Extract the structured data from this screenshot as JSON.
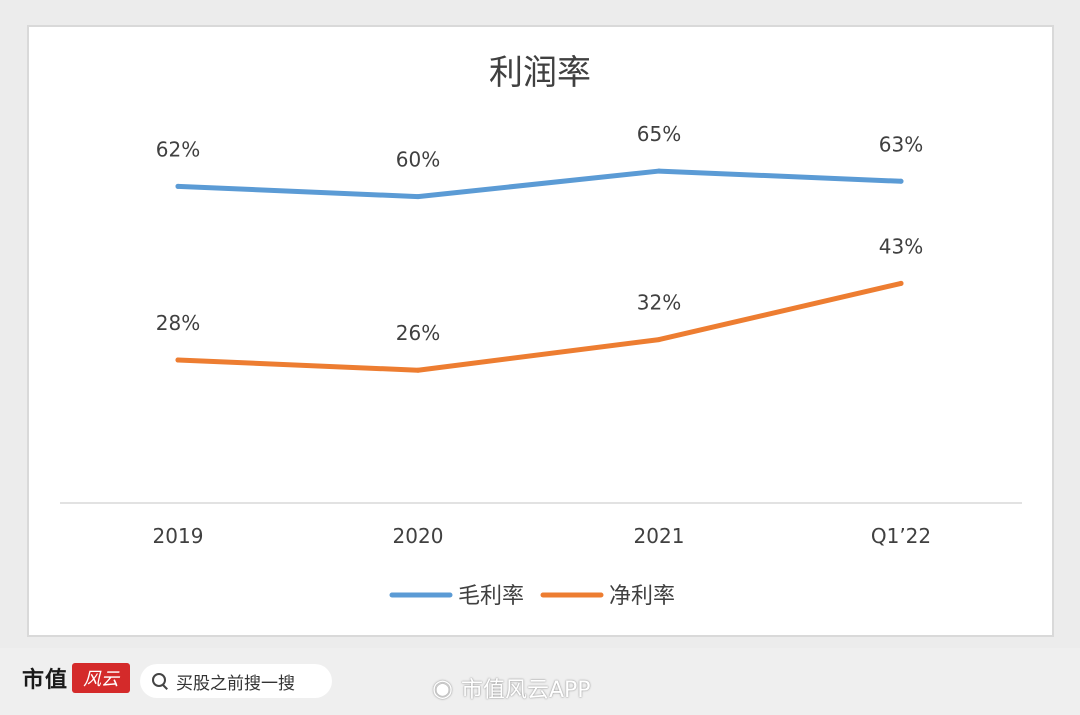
{
  "chart_data": {
    "type": "line",
    "title": "利润率",
    "categories": [
      "2019",
      "2020",
      "2021",
      "Q1’22"
    ],
    "series": [
      {
        "name": "毛利率",
        "values": [
          62,
          60,
          65,
          63
        ],
        "labels": [
          "62%",
          "60%",
          "65%",
          "63%"
        ],
        "color": "#5b9bd5"
      },
      {
        "name": "净利率",
        "values": [
          28,
          26,
          32,
          43
        ],
        "labels": [
          "28%",
          "26%",
          "32%",
          "43%"
        ],
        "color": "#ed7d31"
      }
    ],
    "ylim": [
      0,
      75
    ],
    "grid": false,
    "legend_position": "bottom"
  },
  "footer": {
    "brand": "市值",
    "brand_seal": "风云",
    "search_text": "买股之前搜一搜",
    "watermark": "市值风云APP"
  },
  "icons": {
    "search": "search-icon",
    "weibo": "weibo-icon"
  }
}
